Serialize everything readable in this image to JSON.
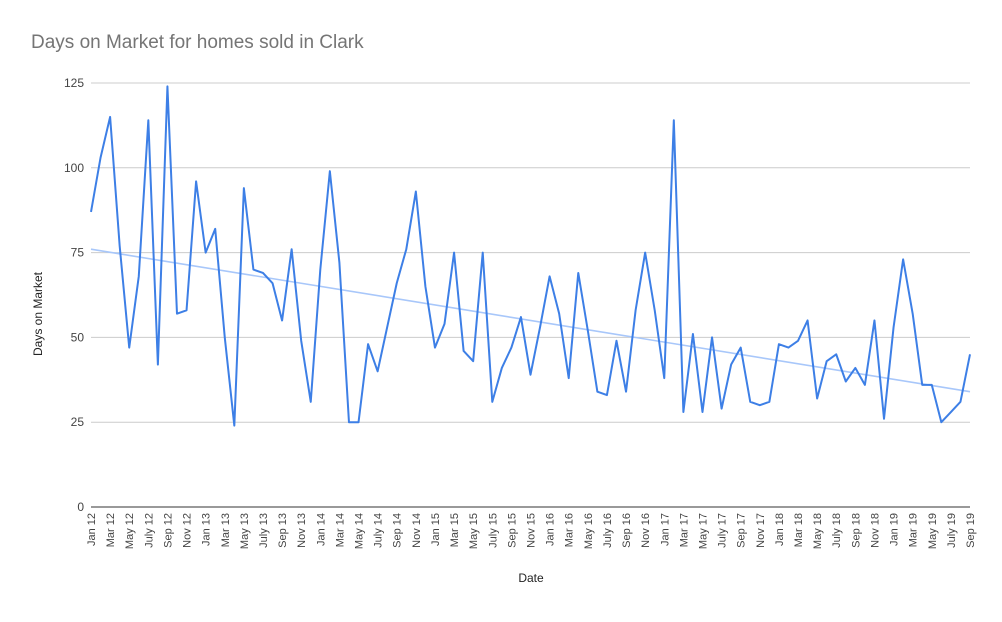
{
  "chart_data": {
    "type": "line",
    "title": "Days on Market for homes sold in Clark",
    "xlabel": "Date",
    "ylabel": "Days on Market",
    "ylim": [
      0,
      125
    ],
    "yticks": [
      0,
      25,
      50,
      75,
      100,
      125
    ],
    "grid": true,
    "legend": "none",
    "trendline": {
      "start": 76,
      "end": 34,
      "color": "#a8c7fa"
    },
    "series_color": "#3d7fe6",
    "x_tick_labels": [
      "Jan 12",
      "Mar 12",
      "May 12",
      "July 12",
      "Sep 12",
      "Nov 12",
      "Jan 13",
      "Mar 13",
      "May 13",
      "July 13",
      "Sep 13",
      "Nov 13",
      "Jan 14",
      "Mar 14",
      "May 14",
      "July 14",
      "Sep 14",
      "Nov 14",
      "Jan 15",
      "Mar 15",
      "May 15",
      "July 15",
      "Sep 15",
      "Nov 15",
      "Jan 16",
      "Mar 16",
      "May 16",
      "July 16",
      "Sep 16",
      "Nov 16",
      "Jan 17",
      "Mar 17",
      "May 17",
      "July 17",
      "Sep 17",
      "Nov 17",
      "Jan 18",
      "Mar 18",
      "May 18",
      "July 18",
      "Sep 18",
      "Nov 18",
      "Jan 19",
      "Mar 19",
      "May 19",
      "July 19",
      "Sep 19"
    ],
    "series": [
      {
        "values": [
          87,
          103,
          115,
          77,
          47,
          68,
          114,
          42,
          124,
          57,
          58,
          96,
          75,
          82,
          50,
          24,
          94,
          70,
          69,
          66,
          55,
          76,
          49,
          31,
          70,
          99,
          72,
          25,
          25,
          48,
          40,
          53,
          66,
          76,
          93,
          65,
          47,
          54,
          75,
          46,
          43,
          75,
          31,
          41,
          47,
          56,
          39,
          53,
          68,
          57,
          38,
          69,
          52,
          34,
          33,
          49,
          34,
          58,
          75,
          58,
          38,
          114,
          28,
          51,
          28,
          50,
          29,
          42,
          47,
          31,
          30,
          31,
          48,
          47,
          49,
          55,
          32,
          43,
          45,
          37,
          41,
          36,
          55,
          26,
          53,
          73,
          57,
          36,
          36,
          25,
          28,
          31,
          45
        ]
      }
    ]
  }
}
